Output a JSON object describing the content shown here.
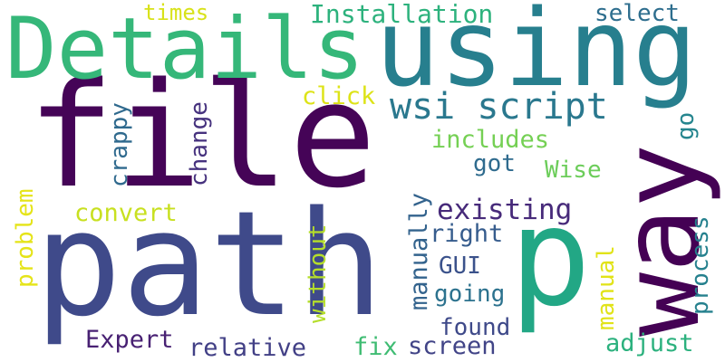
{
  "words": [
    {
      "text": "path",
      "color": "#3f4a8a"
    },
    {
      "text": "file",
      "color": "#450457"
    },
    {
      "text": "p",
      "color": "#22a785"
    },
    {
      "text": "way",
      "color": "#440154"
    },
    {
      "text": "using",
      "color": "#277f8e"
    },
    {
      "text": "Details",
      "color": "#35b779"
    },
    {
      "text": "wsi script",
      "color": "#2a788e"
    },
    {
      "text": "Installation",
      "color": "#2db27d"
    },
    {
      "text": "select",
      "color": "#2e6e8e"
    },
    {
      "text": "times",
      "color": "#d8e219"
    },
    {
      "text": "click",
      "color": "#dde318"
    },
    {
      "text": "crappy",
      "color": "#306a8e"
    },
    {
      "text": "change",
      "color": "#46327e"
    },
    {
      "text": "includes",
      "color": "#75d054"
    },
    {
      "text": "got",
      "color": "#2f6b8e"
    },
    {
      "text": "Wise",
      "color": "#6ccd5a"
    },
    {
      "text": "go",
      "color": "#25858e"
    },
    {
      "text": "convert",
      "color": "#c8e020"
    },
    {
      "text": "problem",
      "color": "#e5e419"
    },
    {
      "text": "existing",
      "color": "#472a7a"
    },
    {
      "text": "right",
      "color": "#365c8d"
    },
    {
      "text": "manually",
      "color": "#33638d"
    },
    {
      "text": "without",
      "color": "#b5de2b"
    },
    {
      "text": "GUI",
      "color": "#3b528b"
    },
    {
      "text": "going",
      "color": "#2c728e"
    },
    {
      "text": "found",
      "color": "#3e4989"
    },
    {
      "text": "manual",
      "color": "#e1e318"
    },
    {
      "text": "process",
      "color": "#26818e"
    },
    {
      "text": "Expert",
      "color": "#482173"
    },
    {
      "text": "relative",
      "color": "#424086"
    },
    {
      "text": "fix",
      "color": "#3fbc73"
    },
    {
      "text": "screen",
      "color": "#414487"
    },
    {
      "text": "adjust",
      "color": "#2cb17e"
    }
  ]
}
